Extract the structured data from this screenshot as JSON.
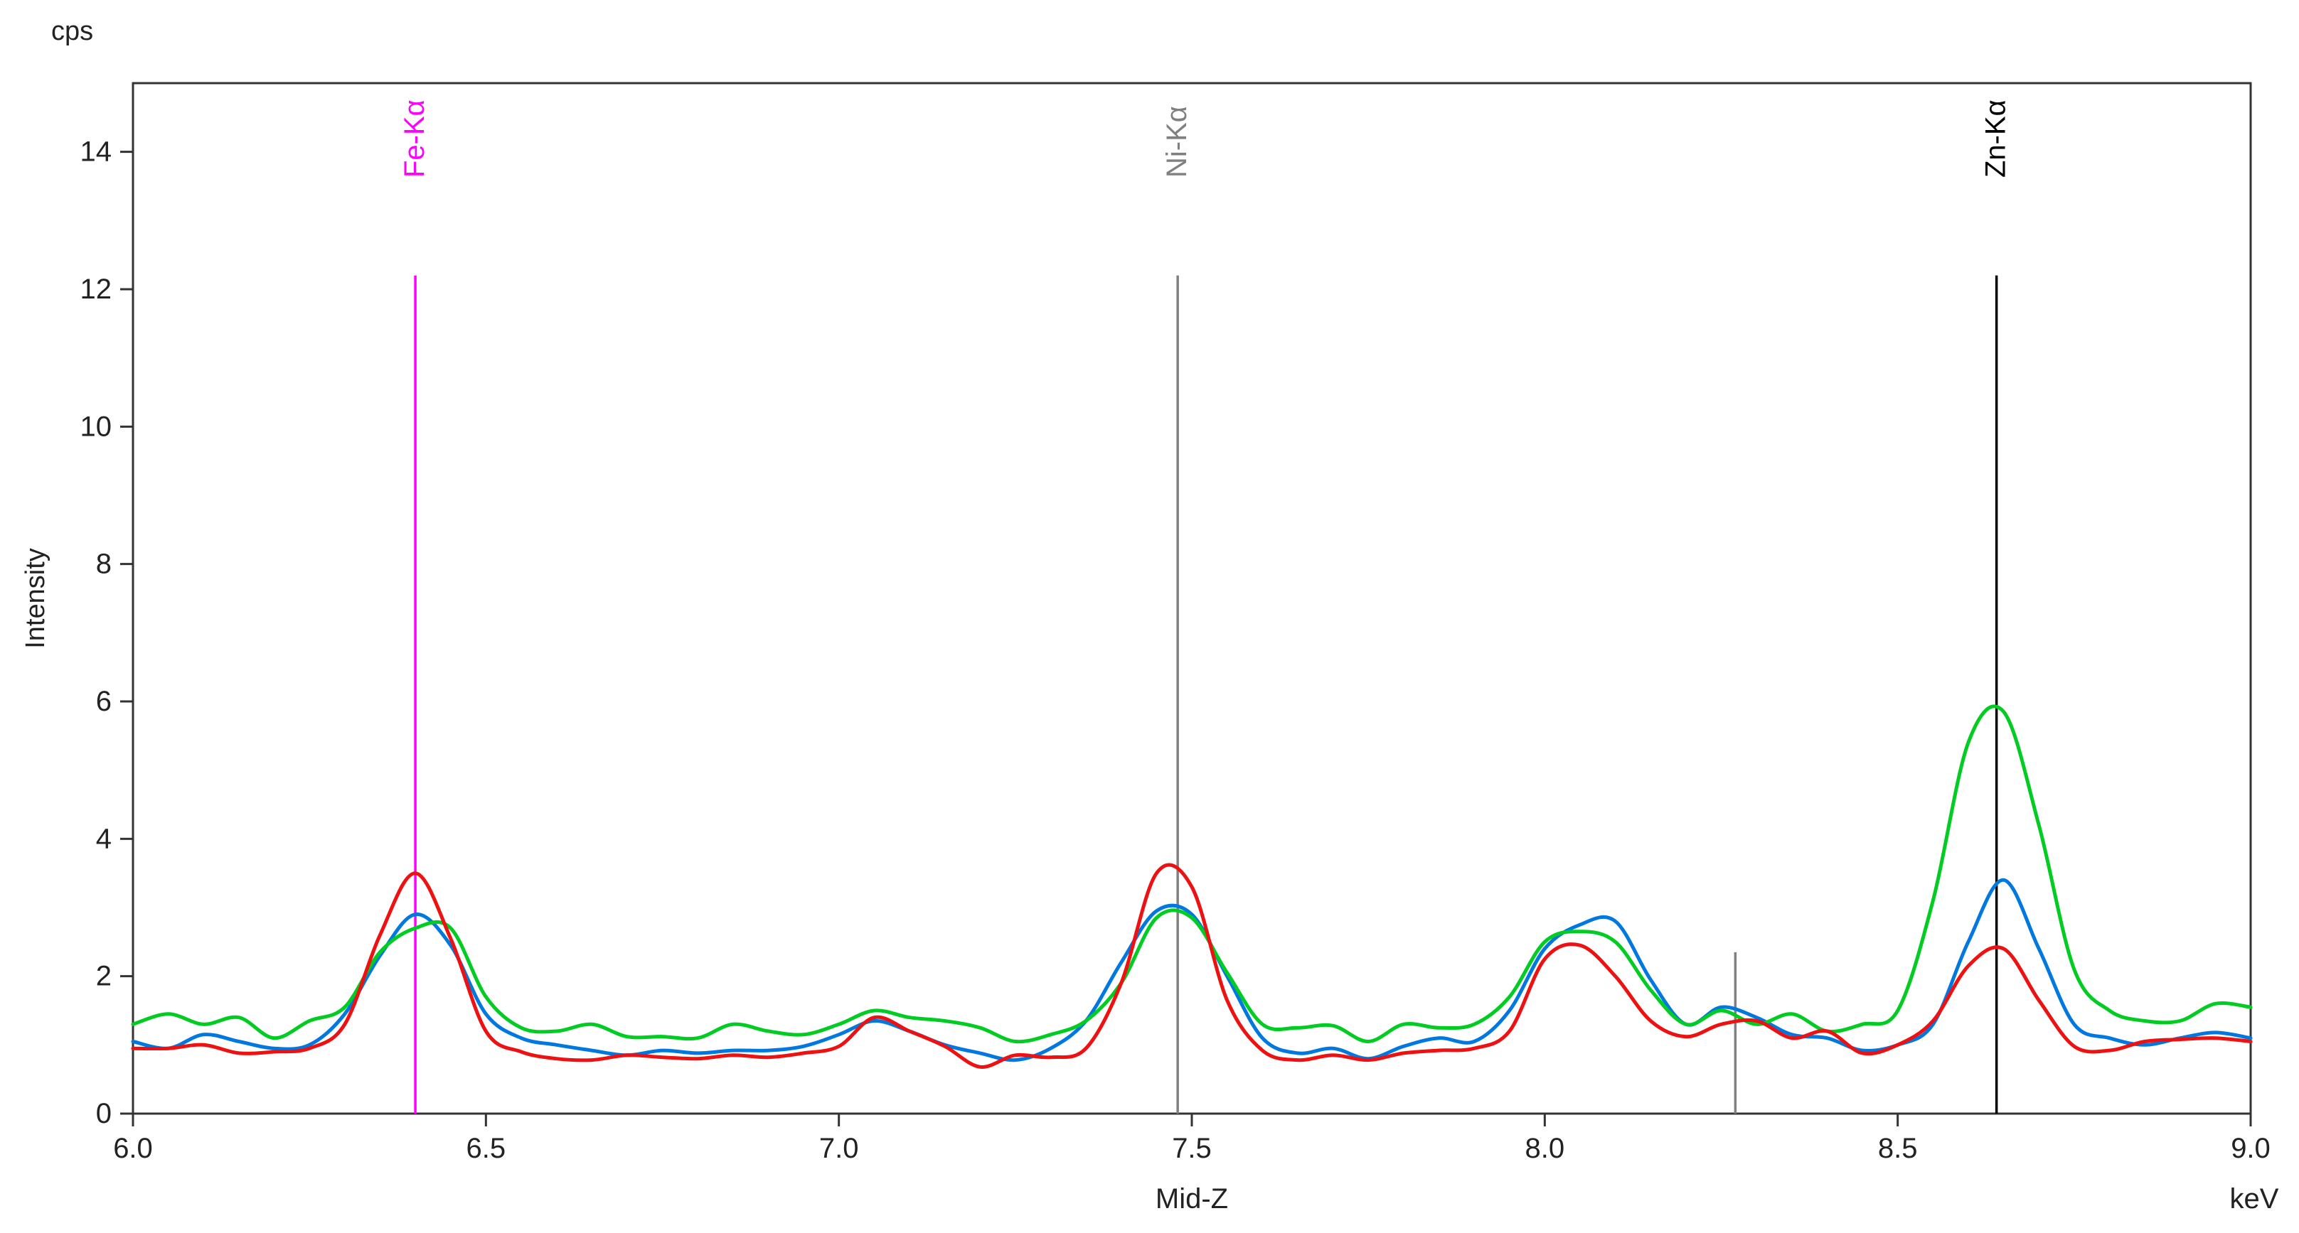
{
  "chart_data": {
    "type": "line",
    "unit_label": "cps",
    "ylabel": "Intensity",
    "xlabel": "Mid-Z",
    "xunit": "keV",
    "xlim": [
      6.0,
      9.0
    ],
    "ylim": [
      0,
      15
    ],
    "xticks": [
      "6.0",
      "6.5",
      "7.0",
      "7.5",
      "8.0",
      "8.5",
      "9.0"
    ],
    "yticks": [
      "0",
      "2",
      "4",
      "6",
      "8",
      "10",
      "12",
      "14"
    ],
    "markers": [
      {
        "label": "Fe-Kα",
        "x": 6.4,
        "height": 12.2,
        "color": "#ff00ff"
      },
      {
        "label": "Ni-Kα",
        "x": 7.48,
        "height": 12.2,
        "color": "#808080"
      },
      {
        "label": "Zn-Kα",
        "x": 8.64,
        "height": 12.2,
        "color": "#000000"
      },
      {
        "label": "",
        "x": 8.27,
        "height": 2.35,
        "color": "#808080"
      }
    ],
    "x": [
      6.0,
      6.05,
      6.1,
      6.15,
      6.2,
      6.25,
      6.3,
      6.35,
      6.4,
      6.45,
      6.5,
      6.55,
      6.6,
      6.65,
      6.7,
      6.75,
      6.8,
      6.85,
      6.9,
      6.95,
      7.0,
      7.05,
      7.1,
      7.15,
      7.2,
      7.25,
      7.3,
      7.35,
      7.4,
      7.45,
      7.5,
      7.55,
      7.6,
      7.65,
      7.7,
      7.75,
      7.8,
      7.85,
      7.9,
      7.95,
      8.0,
      8.05,
      8.1,
      8.15,
      8.2,
      8.25,
      8.3,
      8.35,
      8.4,
      8.45,
      8.5,
      8.55,
      8.6,
      8.65,
      8.7,
      8.75,
      8.8,
      8.85,
      8.9,
      8.95,
      9.0
    ],
    "series": [
      {
        "color": "#0078e0",
        "values": [
          1.05,
          0.95,
          1.15,
          1.05,
          0.95,
          1.0,
          1.45,
          2.3,
          2.9,
          2.45,
          1.45,
          1.1,
          1.0,
          0.92,
          0.85,
          0.92,
          0.88,
          0.92,
          0.92,
          0.98,
          1.15,
          1.35,
          1.2,
          1.0,
          0.88,
          0.78,
          0.95,
          1.35,
          2.2,
          2.95,
          2.9,
          2.0,
          1.1,
          0.88,
          0.95,
          0.8,
          0.98,
          1.1,
          1.05,
          1.5,
          2.4,
          2.75,
          2.8,
          1.95,
          1.3,
          1.55,
          1.4,
          1.15,
          1.1,
          0.92,
          1.0,
          1.3,
          2.5,
          3.4,
          2.4,
          1.3,
          1.1,
          1.0,
          1.1,
          1.18,
          1.1
        ]
      },
      {
        "color": "#00cc22",
        "values": [
          1.3,
          1.45,
          1.3,
          1.4,
          1.1,
          1.35,
          1.55,
          2.35,
          2.7,
          2.7,
          1.7,
          1.25,
          1.2,
          1.3,
          1.12,
          1.12,
          1.1,
          1.3,
          1.2,
          1.15,
          1.3,
          1.5,
          1.4,
          1.35,
          1.25,
          1.05,
          1.15,
          1.35,
          1.9,
          2.85,
          2.85,
          2.05,
          1.3,
          1.25,
          1.28,
          1.05,
          1.3,
          1.25,
          1.3,
          1.7,
          2.5,
          2.65,
          2.5,
          1.8,
          1.3,
          1.5,
          1.3,
          1.45,
          1.2,
          1.3,
          1.5,
          3.1,
          5.4,
          5.85,
          4.2,
          2.1,
          1.5,
          1.35,
          1.35,
          1.6,
          1.55
        ]
      },
      {
        "color": "#ee1111",
        "values": [
          0.95,
          0.95,
          1.0,
          0.88,
          0.9,
          0.95,
          1.3,
          2.6,
          3.5,
          2.55,
          1.2,
          0.9,
          0.8,
          0.78,
          0.85,
          0.82,
          0.8,
          0.85,
          0.82,
          0.88,
          0.98,
          1.4,
          1.2,
          0.98,
          0.68,
          0.85,
          0.82,
          0.95,
          1.9,
          3.5,
          3.3,
          1.65,
          0.92,
          0.78,
          0.85,
          0.78,
          0.88,
          0.92,
          0.95,
          1.2,
          2.25,
          2.45,
          2.0,
          1.35,
          1.12,
          1.3,
          1.35,
          1.1,
          1.2,
          0.88,
          1.0,
          1.35,
          2.15,
          2.4,
          1.65,
          0.98,
          0.92,
          1.05,
          1.08,
          1.1,
          1.05
        ]
      }
    ]
  }
}
